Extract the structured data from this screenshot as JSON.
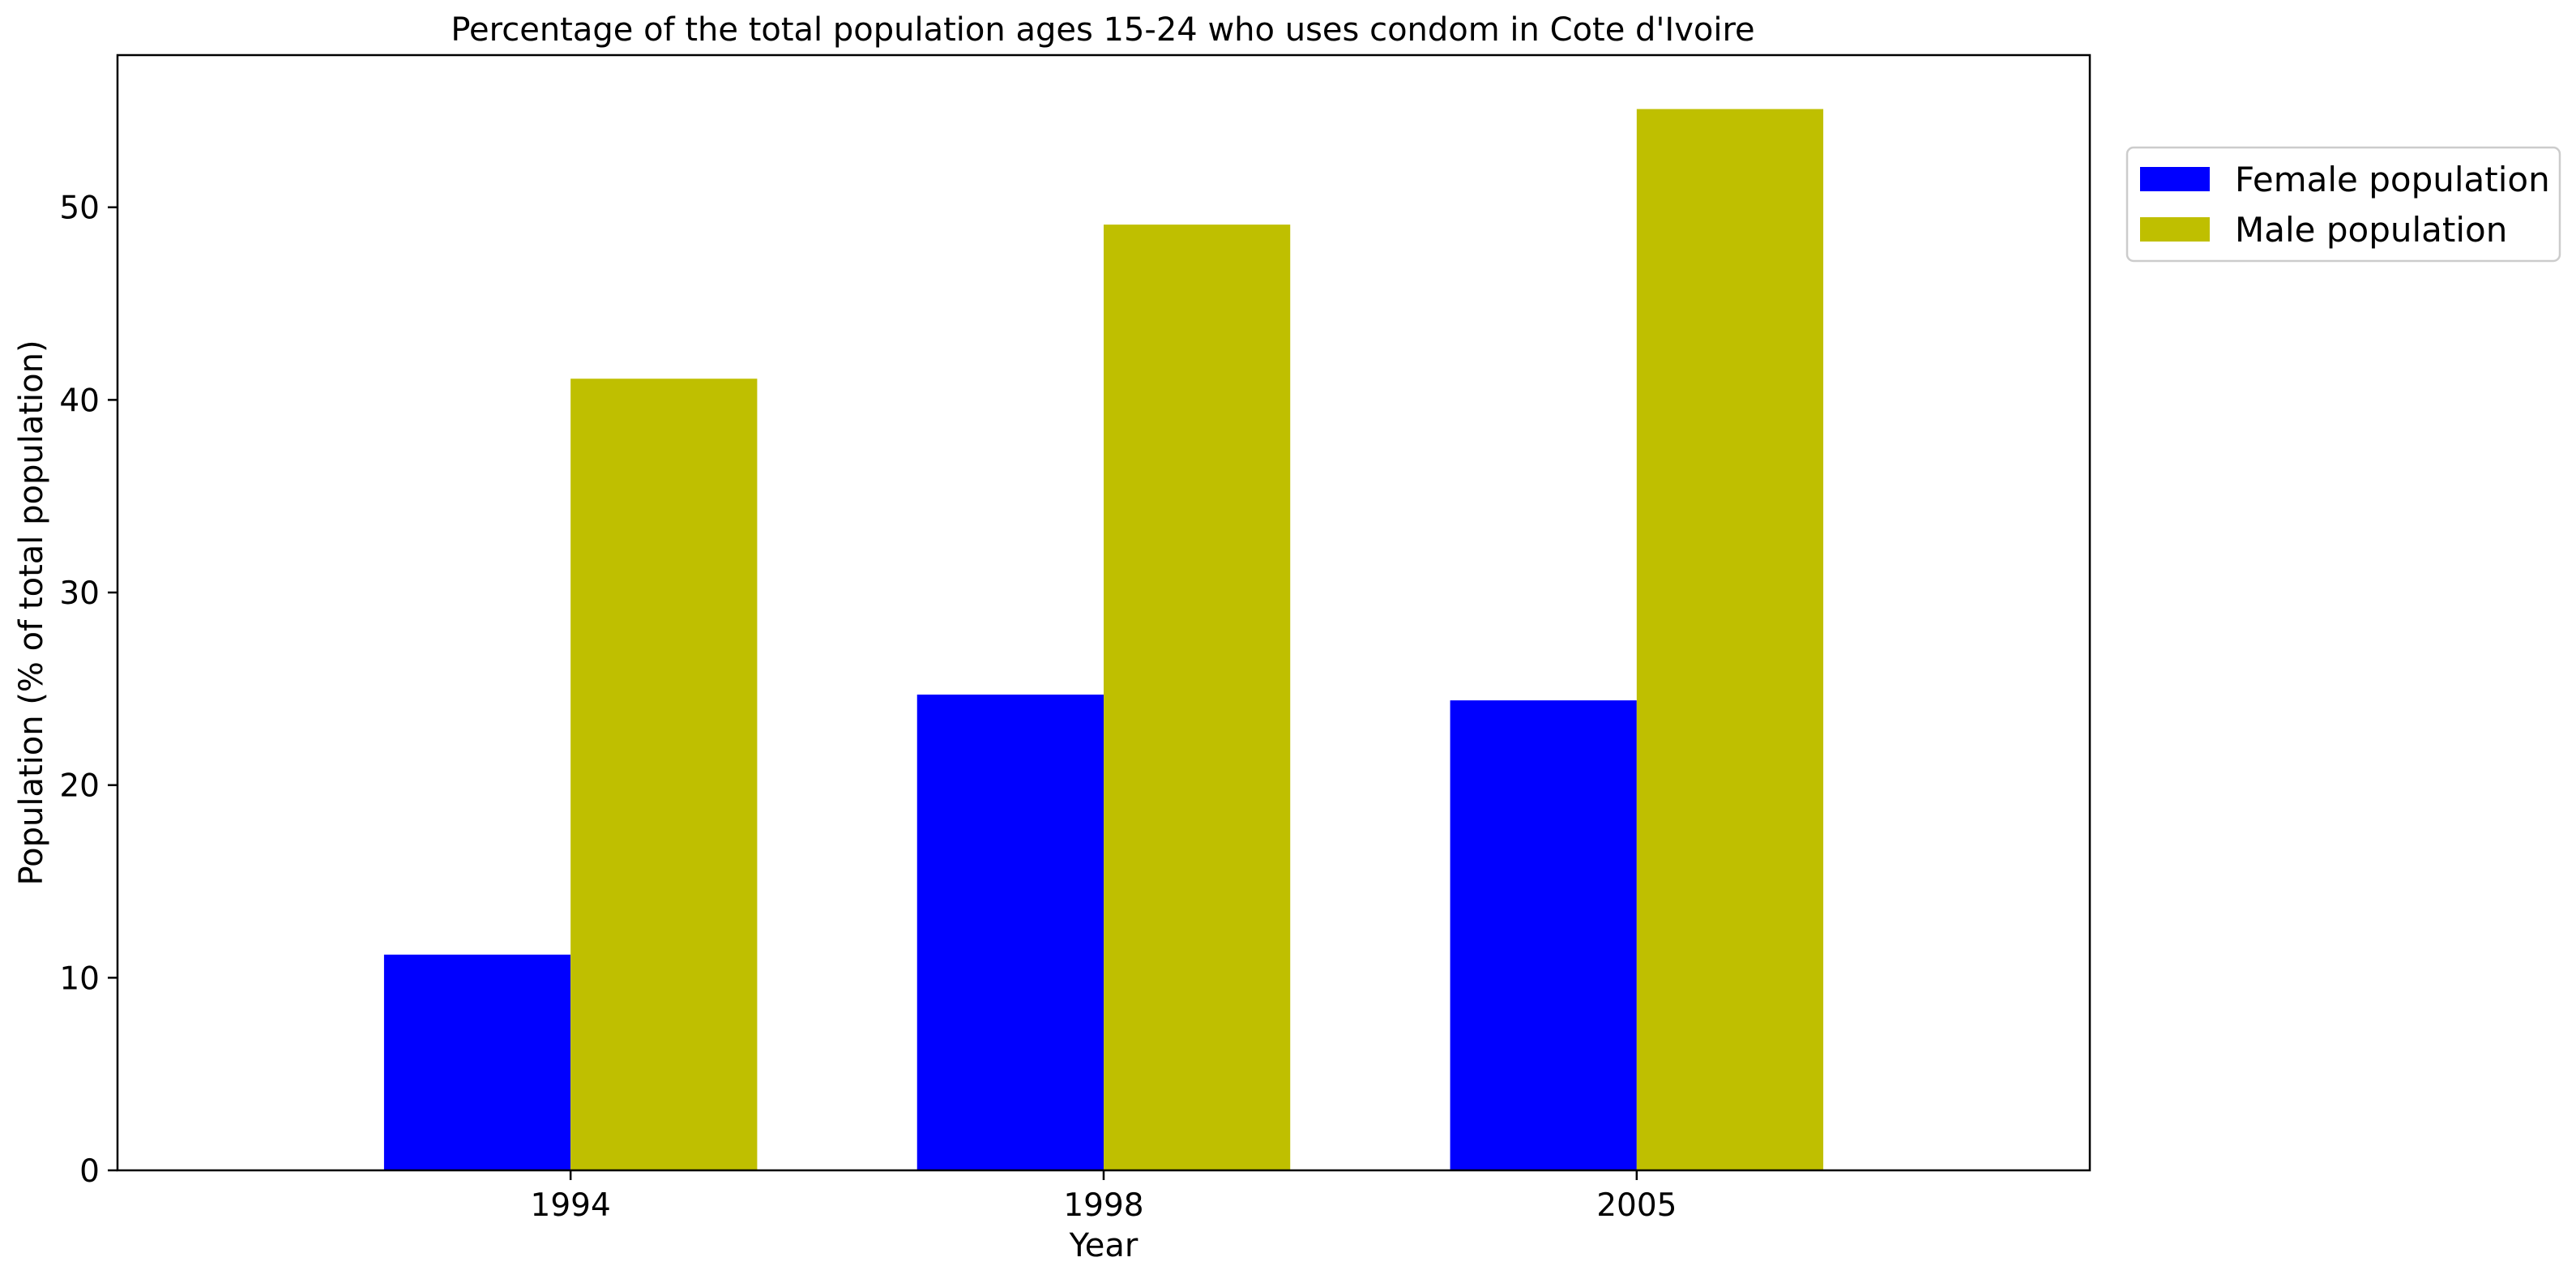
{
  "chart_data": {
    "type": "bar",
    "title": "Percentage of the total population ages 15-24 who uses condom in Cote d'Ivoire",
    "xlabel": "Year",
    "ylabel": "Population (% of total population)",
    "categories": [
      "1994",
      "1998",
      "2005"
    ],
    "series": [
      {
        "name": "Female population",
        "color": "#0000ff",
        "values": [
          11.2,
          24.7,
          24.4
        ]
      },
      {
        "name": "Male population",
        "color": "#bfbf00",
        "values": [
          41.1,
          49.1,
          55.1
        ]
      }
    ],
    "ylim": [
      0,
      57.9
    ],
    "yticks": [
      0,
      10,
      20,
      30,
      40,
      50
    ],
    "grid": false,
    "legend_position": "upper-right-outside"
  }
}
